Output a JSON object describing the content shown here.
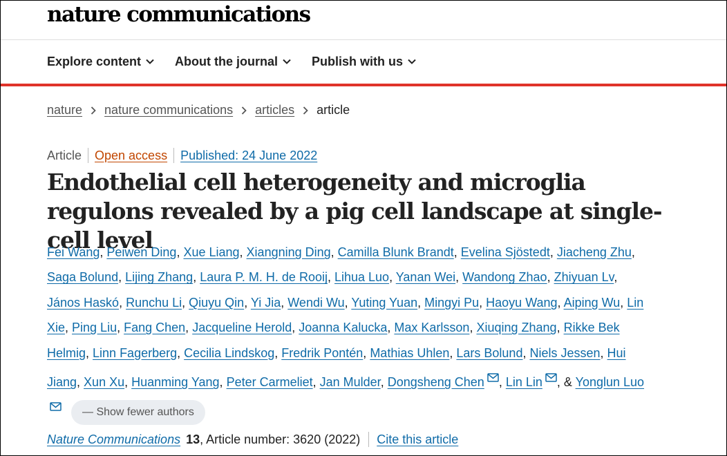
{
  "colors": {
    "link": "#0f6ba8",
    "accent_red": "#e0332a",
    "open_access": "#c14600"
  },
  "header": {
    "logo": "nature communications",
    "nav": [
      "Explore content",
      "About the journal",
      "Publish with us"
    ]
  },
  "breadcrumb": {
    "items": [
      "nature",
      "nature communications",
      "articles"
    ],
    "current": "article"
  },
  "article": {
    "type": "Article",
    "open_access": "Open access",
    "published": "Published: 24 June 2022",
    "title": "Endothelial cell heterogeneity and microglia regulons revealed by a pig cell landscape at single-cell level",
    "authors": [
      "Fei Wang",
      "Peiwen Ding",
      "Xue Liang",
      "Xiangning Ding",
      "Camilla Blunk Brandt",
      "Evelina Sjöstedt",
      "Jiacheng Zhu",
      "Saga Bolund",
      "Lijing Zhang",
      "Laura P. M. H. de Rooij",
      "Lihua Luo",
      "Yanan Wei",
      "Wandong Zhao",
      "Zhiyuan Lv",
      "János Haskó",
      "Runchu Li",
      "Qiuyu Qin",
      "Yi Jia",
      "Wendi Wu",
      "Yuting Yuan",
      "Mingyi Pu",
      "Haoyu Wang",
      "Aiping Wu",
      "Lin Xie",
      "Ping Liu",
      "Fang Chen",
      "Jacqueline Herold",
      "Joanna Kalucka",
      "Max Karlsson",
      "Xiuqing Zhang",
      "Rikke Bek Helmig",
      "Linn Fagerberg",
      "Cecilia Lindskog",
      "Fredrik Pontén",
      "Mathias Uhlen",
      "Lars Bolund",
      "Niels Jessen",
      "Hui Jiang",
      "Xun Xu",
      "Huanming Yang",
      "Peter Carmeliet",
      "Jan Mulder",
      "Dongsheng Chen",
      "Lin Lin",
      "Yonglun Luo"
    ],
    "corresponding_authors": [
      "Dongsheng Chen",
      "Lin Lin",
      "Yonglun Luo"
    ],
    "last_author_joiner": "&",
    "show_fewer": "Show fewer authors",
    "show_fewer_icon": "minus-icon",
    "mail_icon": "envelope-icon"
  },
  "citation": {
    "journal": "Nature Communications",
    "volume": "13",
    "rest": ", Article number: 3620 (2022)",
    "cite_link": "Cite this article"
  }
}
